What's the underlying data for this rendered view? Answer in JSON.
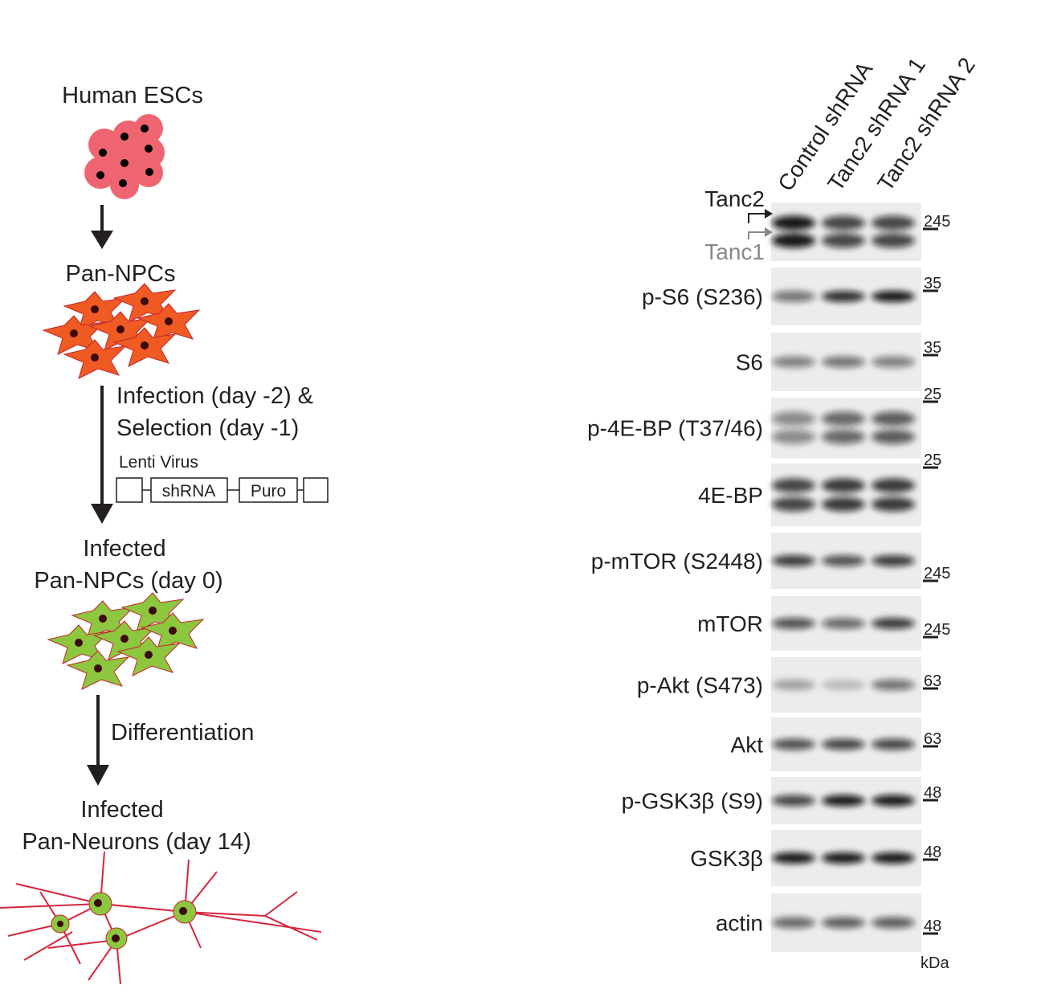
{
  "workflow": {
    "steps": [
      "Human ESCs",
      "Pan-NPCs",
      "Infected",
      "Pan-NPCs (day 0)",
      "Infected",
      "Pan-Neurons (day 14)"
    ],
    "infection": [
      "Infection (day -2) &",
      "Selection (day -1)"
    ],
    "construct_title": "Lenti Virus",
    "construct_parts": [
      "shRNA",
      "Puro"
    ],
    "differentiation": "Differentiation"
  },
  "blot": {
    "lanes": [
      "Control shRNA",
      "Tanc2 shRNA 1",
      "Tanc2 shRNA 2"
    ],
    "rows": [
      {
        "label": "Tanc2",
        "sublabel": "Tanc1",
        "markers": [
          "245"
        ]
      },
      {
        "label": "p-S6 (S236)",
        "markers": [
          "35"
        ]
      },
      {
        "label": "S6",
        "markers": [
          "35",
          "25"
        ]
      },
      {
        "label": "p-4E-BP (T37/46)",
        "markers": [
          "25"
        ]
      },
      {
        "label": "4E-BP",
        "markers": []
      },
      {
        "label": "p-mTOR (S2448)",
        "markers": [
          "245"
        ]
      },
      {
        "label": "mTOR",
        "markers": [
          "245"
        ]
      },
      {
        "label": "p-Akt (S473)",
        "markers": [
          "63"
        ]
      },
      {
        "label": "Akt",
        "markers": [
          "63"
        ]
      },
      {
        "label": "p-GSK3β (S9)",
        "markers": [
          "48"
        ]
      },
      {
        "label": "GSK3β",
        "markers": [
          "48"
        ]
      },
      {
        "label": "actin",
        "markers": [
          "48"
        ]
      }
    ],
    "unit": "kDa"
  }
}
